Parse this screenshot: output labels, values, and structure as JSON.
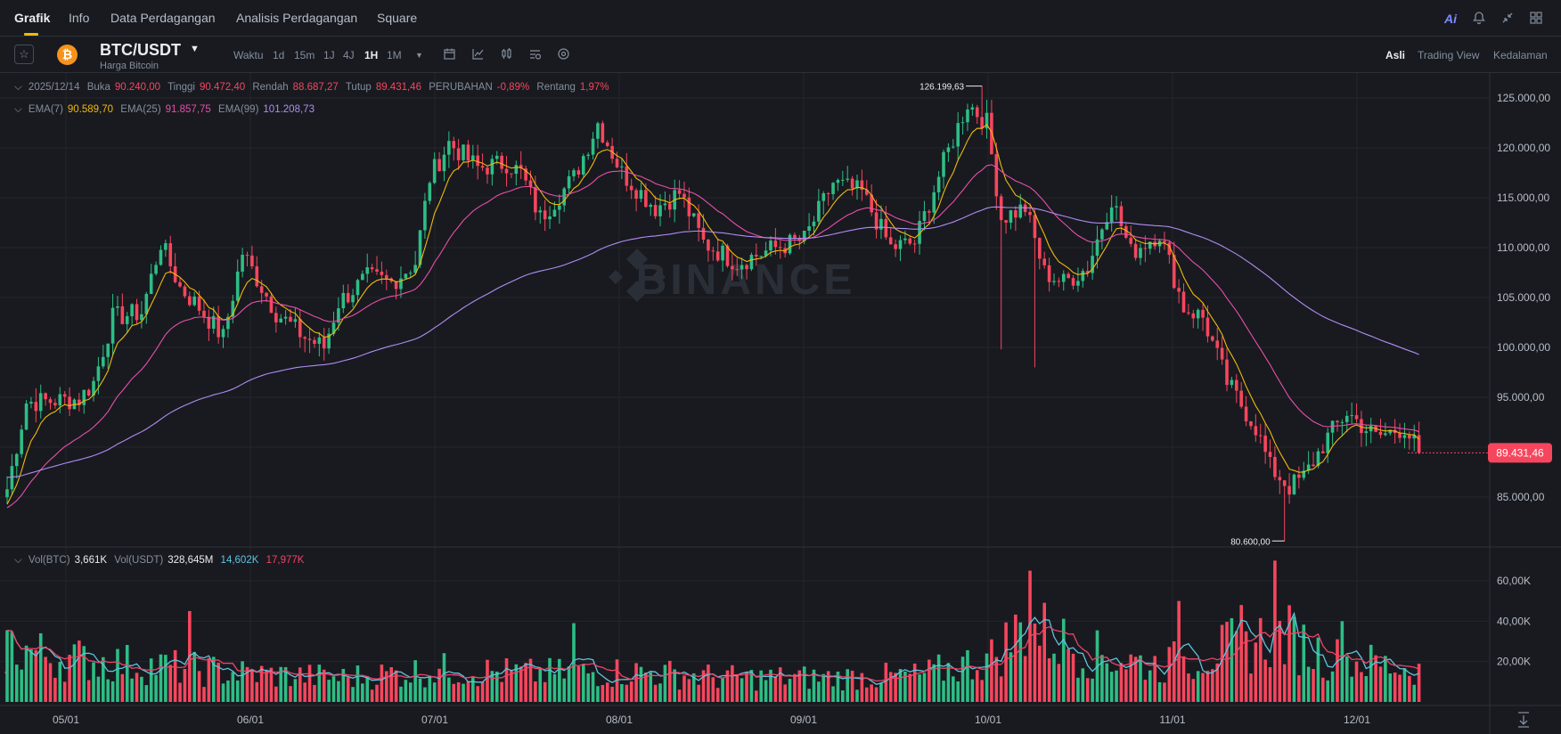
{
  "nav": {
    "tabs": [
      "Grafik",
      "Info",
      "Data Perdagangan",
      "Analisis Perdagangan",
      "Square"
    ],
    "ai_label": "Ai"
  },
  "toolbar": {
    "pair": "BTC/USDT",
    "pair_subtitle": "Harga Bitcoin",
    "time_label": "Waktu",
    "timeframes": [
      "1d",
      "15m",
      "1J",
      "4J",
      "1H",
      "1M"
    ],
    "active_timeframe": "1H",
    "views": [
      "Asli",
      "Trading View",
      "Kedalaman"
    ],
    "active_view": "Asli"
  },
  "ohlc": {
    "date": "2025/12/14",
    "open_label": "Buka",
    "open": "90.240,00",
    "high_label": "Tinggi",
    "high": "90.472,40",
    "low_label": "Rendah",
    "low": "88.687,27",
    "close_label": "Tutup",
    "close": "89.431,46",
    "change_label": "PERUBAHAN",
    "change": "-0,89%",
    "range_label": "Rentang",
    "range": "1,97%"
  },
  "ema": {
    "ema7_label": "EMA(7)",
    "ema7": "90.589,70",
    "ema25_label": "EMA(25)",
    "ema25": "91.857,75",
    "ema99_label": "EMA(99)",
    "ema99": "101.208,73"
  },
  "vol": {
    "btc_label": "Vol(BTC)",
    "btc": "3,661K",
    "usdt_label": "Vol(USDT)",
    "usdt": "328,645M",
    "ma1": "14,602K",
    "ma2": "17,977K"
  },
  "colors": {
    "up": "#2ebd85",
    "down": "#f6465d",
    "ema7": "#f0b90b",
    "ema25": "#e84fa8",
    "ema99": "#b28cf2",
    "vol_ma1": "#5ec4de",
    "vol_ma2": "#ee4466",
    "watermark": "#2a2e36"
  },
  "watermark": "BINANCE",
  "chart_data": {
    "type": "candlestick",
    "x_ticks": [
      "05/01",
      "06/01",
      "07/01",
      "08/01",
      "09/01",
      "10/01",
      "11/01",
      "12/01"
    ],
    "price_ticks": [
      "125.000,00",
      "120.000,00",
      "115.000,00",
      "110.000,00",
      "105.000,00",
      "100.000,00",
      "95.000,00",
      "90.000,00",
      "85.000,00"
    ],
    "price_range": [
      80000,
      127500
    ],
    "vol_ticks": [
      "60,00K",
      "40,00K",
      "20,00K"
    ],
    "vol_range": [
      0,
      75000
    ],
    "current_price": "89.431,46",
    "max_label": "126.199,63",
    "min_label": "80.600,00",
    "anchors": [
      [
        0,
        85800
      ],
      [
        4,
        94500
      ],
      [
        15,
        94800
      ],
      [
        18,
        96500
      ],
      [
        22,
        103000
      ],
      [
        28,
        103500
      ],
      [
        32,
        110500
      ],
      [
        36,
        106000
      ],
      [
        40,
        104000
      ],
      [
        45,
        101000
      ],
      [
        49,
        109500
      ],
      [
        56,
        103500
      ],
      [
        62,
        101000
      ],
      [
        66,
        100000
      ],
      [
        69,
        104500
      ],
      [
        75,
        107000
      ],
      [
        80,
        106500
      ],
      [
        85,
        108500
      ],
      [
        88,
        117000
      ],
      [
        92,
        120500
      ],
      [
        98,
        118000
      ],
      [
        104,
        118500
      ],
      [
        107,
        117500
      ],
      [
        111,
        113000
      ],
      [
        118,
        117000
      ],
      [
        123,
        122500
      ],
      [
        128,
        117500
      ],
      [
        135,
        114000
      ],
      [
        140,
        115500
      ],
      [
        145,
        110500
      ],
      [
        152,
        108500
      ],
      [
        160,
        110000
      ],
      [
        166,
        110800
      ],
      [
        172,
        116500
      ],
      [
        178,
        115500
      ],
      [
        184,
        110000
      ],
      [
        189,
        110500
      ],
      [
        195,
        118500
      ],
      [
        200,
        124500
      ],
      [
        204,
        122500
      ],
      [
        207,
        113000
      ],
      [
        212,
        114000
      ],
      [
        216,
        107500
      ],
      [
        220,
        106500
      ],
      [
        225,
        108000
      ],
      [
        230,
        115000
      ],
      [
        234,
        109500
      ],
      [
        240,
        111500
      ],
      [
        245,
        104000
      ],
      [
        249,
        103000
      ],
      [
        254,
        96500
      ],
      [
        260,
        92000
      ],
      [
        263,
        88000
      ],
      [
        267,
        86000
      ],
      [
        270,
        87000
      ],
      [
        275,
        91000
      ],
      [
        279,
        93500
      ],
      [
        285,
        91000
      ],
      [
        291,
        92000
      ],
      [
        294,
        89431
      ]
    ],
    "vol_anchors": [
      [
        0,
        28000
      ],
      [
        10,
        22000
      ],
      [
        30,
        18000
      ],
      [
        50,
        14000
      ],
      [
        70,
        12000
      ],
      [
        90,
        16000
      ],
      [
        110,
        14000
      ],
      [
        130,
        15000
      ],
      [
        150,
        12000
      ],
      [
        170,
        12000
      ],
      [
        190,
        13000
      ],
      [
        205,
        22000
      ],
      [
        212,
        38000
      ],
      [
        225,
        24000
      ],
      [
        240,
        18000
      ],
      [
        250,
        24000
      ],
      [
        260,
        30000
      ],
      [
        265,
        34000
      ],
      [
        275,
        22000
      ],
      [
        294,
        16000
      ]
    ],
    "spikes": [
      [
        213,
        65000
      ],
      [
        264,
        70000
      ],
      [
        244,
        50000
      ],
      [
        257,
        48000
      ],
      [
        38,
        45000
      ],
      [
        118,
        39000
      ],
      [
        278,
        40000
      ]
    ]
  }
}
